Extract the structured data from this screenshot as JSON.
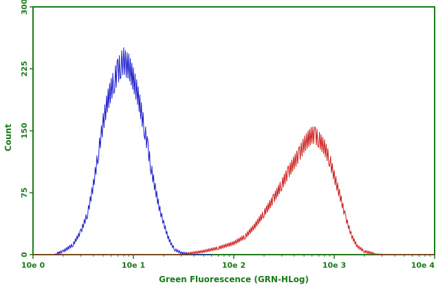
{
  "chart_data": {
    "type": "line",
    "xlabel": "Green Fluorescence (GRN-HLog)",
    "ylabel": "Count",
    "x_scale": "log",
    "xlim": [
      1,
      10000
    ],
    "ylim": [
      0,
      300
    ],
    "x_ticks": [
      1,
      10,
      100,
      1000,
      10000
    ],
    "x_tick_labels": [
      "10e 0",
      "10e 1",
      "10e 2",
      "10e 3",
      "10e 4"
    ],
    "y_ticks": [
      0,
      75,
      150,
      225,
      300
    ],
    "y_tick_labels": [
      "0",
      "75",
      "150",
      "225",
      "300"
    ],
    "grid": false,
    "legend": "none",
    "series": [
      {
        "color": "#1a1acc",
        "x": [
          1.0,
          1.6,
          2.0,
          2.5,
          3.0,
          3.5,
          4.0,
          4.5,
          5.0,
          5.5,
          6.0,
          6.5,
          7.0,
          7.5,
          8.0,
          8.5,
          9.0,
          9.5,
          10.0,
          11.0,
          12.0,
          13.0,
          14.0,
          15.0,
          16.5,
          18.0,
          20.0,
          22.0,
          24.0,
          26.0,
          30.0,
          40.0,
          60.0
        ],
        "y": [
          0,
          0,
          4,
          12,
          28,
          50,
          85,
          125,
          160,
          185,
          200,
          212,
          222,
          230,
          235,
          230,
          228,
          220,
          212,
          195,
          172,
          150,
          128,
          105,
          80,
          58,
          38,
          22,
          12,
          6,
          2,
          0,
          0
        ]
      },
      {
        "color": "#cc1a1a",
        "x": [
          1.0,
          30.0,
          50.0,
          70.0,
          100.0,
          130.0,
          160.0,
          200.0,
          250.0,
          300.0,
          350.0,
          400.0,
          450.0,
          500.0,
          550.0,
          600.0,
          650.0,
          700.0,
          800.0,
          900.0,
          1000.0,
          1150.0,
          1300.0,
          1500.0,
          1700.0,
          2000.0,
          2500.0,
          3500.0,
          10000.0
        ],
        "y": [
          0,
          0,
          4,
          8,
          14,
          22,
          34,
          50,
          68,
          85,
          100,
          112,
          122,
          133,
          140,
          145,
          144,
          140,
          130,
          115,
          95,
          70,
          45,
          22,
          10,
          4,
          1,
          0,
          0
        ]
      }
    ]
  }
}
